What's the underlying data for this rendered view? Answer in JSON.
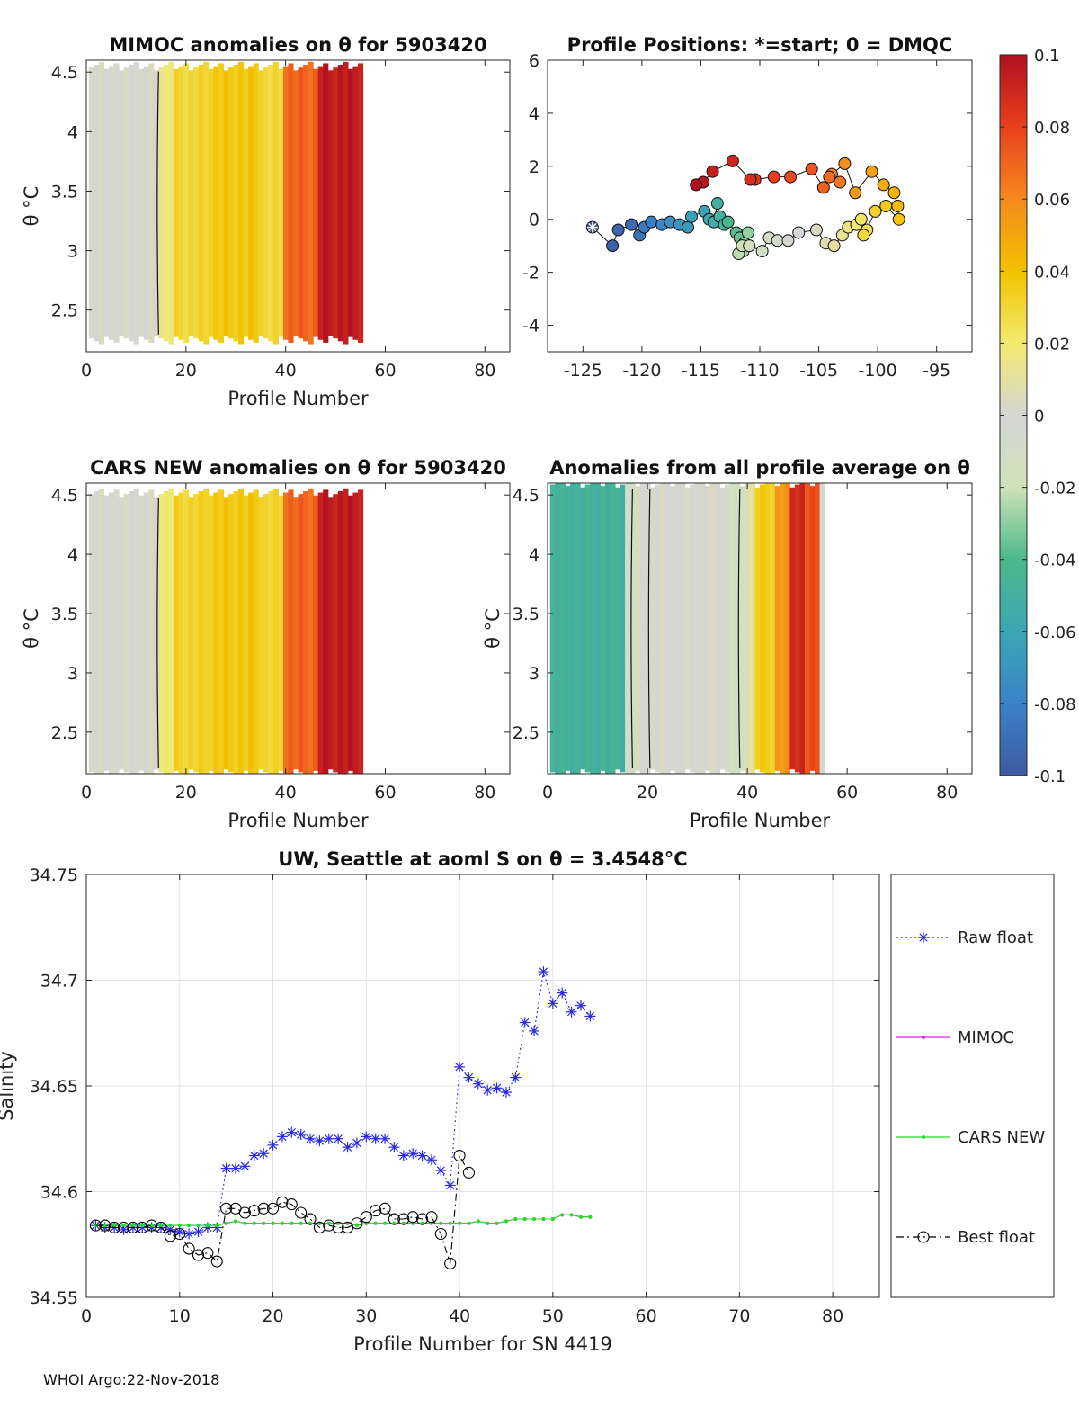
{
  "chart_data": [
    {
      "id": "mimoc",
      "type": "heatmap",
      "title": "MIMOC anomalies on θ  for 5903420",
      "xlabel": "Profile Number",
      "ylabel": "θ °C",
      "xlim": [
        0,
        85
      ],
      "ylim": [
        2.15,
        4.6
      ],
      "xticks": [
        "0",
        "20",
        "40",
        "60",
        "80"
      ],
      "yticks": [
        "2.5",
        "3",
        "3.5",
        "4",
        "4.5"
      ],
      "profiles": 55,
      "theta_range": [
        2.25,
        4.55
      ],
      "anomaly_bands": [
        {
          "from": 1,
          "to": 14,
          "value": 0.0
        },
        {
          "from": 15,
          "to": 17,
          "value": 0.018
        },
        {
          "from": 18,
          "to": 24,
          "value": 0.03
        },
        {
          "from": 25,
          "to": 35,
          "value": 0.037
        },
        {
          "from": 36,
          "to": 39,
          "value": 0.028
        },
        {
          "from": 40,
          "to": 46,
          "value": 0.07
        },
        {
          "from": 47,
          "to": 55,
          "value": 0.095
        }
      ]
    },
    {
      "id": "positions",
      "type": "scatter",
      "title": "Profile Positions: *=start; 0 = DMQC",
      "xlim": [
        -128,
        -92
      ],
      "ylim": [
        -5,
        6
      ],
      "xticks": [
        "-125",
        "-120",
        "-115",
        "-110",
        "-105",
        "-100",
        "-95"
      ],
      "yticks": [
        "-4",
        "-2",
        "0",
        "2",
        "4",
        "6"
      ],
      "start": [
        -124.2,
        -0.3
      ],
      "points": [
        [
          -124.2,
          -0.3
        ],
        [
          -122.5,
          -1.0
        ],
        [
          -122.0,
          -0.4
        ],
        [
          -120.9,
          -0.2
        ],
        [
          -120.2,
          -0.6
        ],
        [
          -119.8,
          -0.3
        ],
        [
          -119.2,
          -0.1
        ],
        [
          -118.3,
          -0.2
        ],
        [
          -117.6,
          -0.1
        ],
        [
          -116.8,
          -0.2
        ],
        [
          -116.1,
          -0.3
        ],
        [
          -115.8,
          0.1
        ],
        [
          -114.7,
          0.3
        ],
        [
          -114.3,
          0.0
        ],
        [
          -113.9,
          -0.1
        ],
        [
          -113.6,
          0.6
        ],
        [
          -113.4,
          0.1
        ],
        [
          -113.0,
          -0.2
        ],
        [
          -112.7,
          -0.1
        ],
        [
          -112.0,
          -0.5
        ],
        [
          -111.7,
          -0.7
        ],
        [
          -111.3,
          -0.9
        ],
        [
          -111.0,
          -0.5
        ],
        [
          -111.4,
          -1.2
        ],
        [
          -111.8,
          -1.3
        ],
        [
          -111.5,
          -1.0
        ],
        [
          -110.9,
          -1.0
        ],
        [
          -109.8,
          -1.2
        ],
        [
          -109.2,
          -0.7
        ],
        [
          -108.5,
          -0.8
        ],
        [
          -107.6,
          -0.8
        ],
        [
          -106.7,
          -0.5
        ],
        [
          -105.2,
          -0.4
        ],
        [
          -104.4,
          -0.9
        ],
        [
          -103.7,
          -1.0
        ],
        [
          -103.0,
          -0.6
        ],
        [
          -102.5,
          -0.3
        ],
        [
          -101.8,
          -0.2
        ],
        [
          -101.4,
          0.0
        ],
        [
          -100.9,
          -0.4
        ],
        [
          -101.2,
          -0.6
        ],
        [
          -100.2,
          0.3
        ],
        [
          -99.3,
          0.5
        ],
        [
          -98.2,
          0.0
        ],
        [
          -98.3,
          0.5
        ],
        [
          -98.6,
          1.0
        ],
        [
          -99.5,
          1.3
        ],
        [
          -100.5,
          1.8
        ],
        [
          -101.9,
          1.0
        ],
        [
          -102.8,
          2.1
        ],
        [
          -103.9,
          1.7
        ],
        [
          -103.2,
          1.4
        ],
        [
          -104.1,
          1.6
        ],
        [
          -104.6,
          1.2
        ],
        [
          -105.6,
          1.9
        ],
        [
          -107.4,
          1.6
        ],
        [
          -108.8,
          1.6
        ],
        [
          -110.4,
          1.5
        ],
        [
          -110.8,
          1.5
        ],
        [
          -112.3,
          2.2
        ],
        [
          -114.0,
          1.8
        ],
        [
          -114.8,
          1.4
        ],
        [
          -115.4,
          1.3
        ]
      ]
    },
    {
      "id": "colorbar",
      "type": "colorbar",
      "range": [
        -0.1,
        0.1
      ],
      "ticks": [
        "0.1",
        "0.08",
        "0.06",
        "0.04",
        "0.02",
        "0",
        "-0.02",
        "-0.04",
        "-0.06",
        "-0.08",
        "-0.1"
      ],
      "stops": [
        {
          "v": -0.1,
          "c": "#3d5aa0"
        },
        {
          "v": -0.08,
          "c": "#3b82c8"
        },
        {
          "v": -0.06,
          "c": "#3aa7b3"
        },
        {
          "v": -0.04,
          "c": "#4bb98a"
        },
        {
          "v": -0.02,
          "c": "#cfe3b8"
        },
        {
          "v": 0.0,
          "c": "#d5d5d5"
        },
        {
          "v": 0.02,
          "c": "#f2ea6e"
        },
        {
          "v": 0.04,
          "c": "#f2c200"
        },
        {
          "v": 0.06,
          "c": "#f58a1f"
        },
        {
          "v": 0.08,
          "c": "#e8401c"
        },
        {
          "v": 0.1,
          "c": "#b01020"
        }
      ]
    },
    {
      "id": "cars",
      "type": "heatmap",
      "title": "CARS NEW anomalies on θ for 5903420",
      "xlabel": "Profile Number",
      "ylabel": "θ °C",
      "xlim": [
        0,
        85
      ],
      "ylim": [
        2.15,
        4.6
      ],
      "xticks": [
        "0",
        "20",
        "40",
        "60",
        "80"
      ],
      "yticks": [
        "2.5",
        "3",
        "3.5",
        "4",
        "4.5"
      ],
      "profiles": 55,
      "theta_range": [
        2.15,
        4.52
      ],
      "anomaly_bands": [
        {
          "from": 1,
          "to": 14,
          "value": 0.0
        },
        {
          "from": 15,
          "to": 17,
          "value": 0.02
        },
        {
          "from": 18,
          "to": 24,
          "value": 0.032
        },
        {
          "from": 25,
          "to": 35,
          "value": 0.037
        },
        {
          "from": 36,
          "to": 39,
          "value": 0.03
        },
        {
          "from": 40,
          "to": 46,
          "value": 0.07
        },
        {
          "from": 47,
          "to": 55,
          "value": 0.095
        }
      ]
    },
    {
      "id": "anomaly_avg",
      "type": "heatmap",
      "title": "Anomalies from all profile average on θ",
      "xlabel": "Profile Number",
      "ylabel": "θ °C",
      "xlim": [
        0,
        85
      ],
      "ylim": [
        2.15,
        4.6
      ],
      "xticks": [
        "0",
        "20",
        "40",
        "60",
        "80"
      ],
      "yticks": [
        "2.5",
        "3",
        "3.5",
        "4",
        "4.5"
      ],
      "profiles": 55,
      "theta_range": [
        2.15,
        4.6
      ],
      "anomaly_bands": [
        {
          "from": 1,
          "to": 15,
          "value": -0.048
        },
        {
          "from": 16,
          "to": 17,
          "value": -0.01
        },
        {
          "from": 18,
          "to": 36,
          "value": 0.0
        },
        {
          "from": 37,
          "to": 39,
          "value": -0.015
        },
        {
          "from": 40,
          "to": 41,
          "value": 0.01
        },
        {
          "from": 42,
          "to": 45,
          "value": 0.035
        },
        {
          "from": 46,
          "to": 48,
          "value": 0.055
        },
        {
          "from": 49,
          "to": 51,
          "value": 0.09
        },
        {
          "from": 52,
          "to": 54,
          "value": 0.075
        }
      ]
    },
    {
      "id": "salinity",
      "type": "line",
      "title": "UW, Seattle at aoml S on θ = 3.4548°C",
      "xlabel": "Profile Number for SN 4419",
      "ylabel": "Salinity",
      "xlim": [
        0,
        85
      ],
      "ylim": [
        34.55,
        34.75
      ],
      "xticks": [
        "0",
        "10",
        "20",
        "30",
        "40",
        "50",
        "60",
        "70",
        "80"
      ],
      "yticks": [
        "34.55",
        "34.6",
        "34.65",
        "34.7",
        "34.75"
      ],
      "grid": true,
      "series": [
        {
          "name": "Raw float",
          "color": "#2a2ae8",
          "marker": "star",
          "line": "dotted",
          "x": [
            1,
            2,
            3,
            4,
            5,
            6,
            7,
            8,
            9,
            10,
            11,
            12,
            13,
            14,
            15,
            16,
            17,
            18,
            19,
            20,
            21,
            22,
            23,
            24,
            25,
            26,
            27,
            28,
            29,
            30,
            31,
            32,
            33,
            34,
            35,
            36,
            37,
            38,
            39,
            40,
            41,
            42,
            43,
            44,
            45,
            46,
            47,
            48,
            49,
            50,
            51,
            52,
            53,
            54
          ],
          "y": [
            34.584,
            34.583,
            34.583,
            34.582,
            34.583,
            34.583,
            34.583,
            34.583,
            34.582,
            34.581,
            34.58,
            34.581,
            34.583,
            34.583,
            34.611,
            34.611,
            34.612,
            34.617,
            34.618,
            34.622,
            34.626,
            34.628,
            34.627,
            34.625,
            34.624,
            34.625,
            34.625,
            34.621,
            34.623,
            34.626,
            34.625,
            34.625,
            34.621,
            34.617,
            34.618,
            34.617,
            34.615,
            34.61,
            34.603,
            34.659,
            34.654,
            34.651,
            34.648,
            34.649,
            34.647,
            34.654,
            34.68,
            34.676,
            34.704,
            34.689,
            34.694,
            34.685,
            34.688,
            34.683
          ]
        },
        {
          "name": "MIMOC",
          "color": "#e020e0",
          "marker": "dot",
          "line": "solid",
          "x": [
            1,
            2,
            3,
            4,
            5,
            6,
            7,
            8,
            9,
            10,
            11,
            12,
            13,
            14,
            15,
            16,
            17,
            18,
            19,
            20,
            21,
            22,
            23,
            24,
            25,
            26,
            27,
            28,
            29,
            30,
            31,
            32,
            33,
            34,
            35,
            36,
            37,
            38,
            39,
            40,
            41,
            42,
            43,
            44,
            45,
            46,
            47,
            48,
            49,
            50,
            51,
            52,
            53,
            54
          ],
          "y": [
            34.584,
            34.584,
            34.584,
            34.584,
            34.584,
            34.584,
            34.584,
            34.584,
            34.584,
            34.584,
            34.584,
            34.584,
            34.584,
            34.584,
            34.585,
            34.586,
            34.585,
            34.585,
            34.585,
            34.585,
            34.585,
            34.585,
            34.585,
            34.585,
            34.585,
            34.585,
            34.585,
            34.585,
            34.584,
            34.585,
            34.585,
            34.585,
            34.585,
            34.585,
            34.585,
            34.585,
            34.585,
            34.585,
            34.585,
            34.585,
            34.585,
            34.586,
            34.585,
            34.585,
            34.586,
            34.587,
            34.587,
            34.587,
            34.587,
            34.587,
            34.589,
            34.589,
            34.588,
            34.588
          ]
        },
        {
          "name": "CARS NEW",
          "color": "#22dd22",
          "marker": "dot",
          "line": "solid",
          "x": [
            1,
            2,
            3,
            4,
            5,
            6,
            7,
            8,
            9,
            10,
            11,
            12,
            13,
            14,
            15,
            16,
            17,
            18,
            19,
            20,
            21,
            22,
            23,
            24,
            25,
            26,
            27,
            28,
            29,
            30,
            31,
            32,
            33,
            34,
            35,
            36,
            37,
            38,
            39,
            40,
            41,
            42,
            43,
            44,
            45,
            46,
            47,
            48,
            49,
            50,
            51,
            52,
            53,
            54
          ],
          "y": [
            34.584,
            34.584,
            34.584,
            34.584,
            34.584,
            34.584,
            34.584,
            34.584,
            34.584,
            34.584,
            34.584,
            34.584,
            34.584,
            34.584,
            34.585,
            34.586,
            34.585,
            34.585,
            34.585,
            34.585,
            34.585,
            34.585,
            34.585,
            34.585,
            34.585,
            34.585,
            34.585,
            34.585,
            34.584,
            34.585,
            34.585,
            34.585,
            34.585,
            34.585,
            34.585,
            34.585,
            34.585,
            34.585,
            34.585,
            34.585,
            34.585,
            34.586,
            34.585,
            34.585,
            34.586,
            34.587,
            34.587,
            34.587,
            34.587,
            34.587,
            34.589,
            34.589,
            34.588,
            34.588
          ]
        },
        {
          "name": "Best float",
          "color": "#000000",
          "marker": "circle",
          "line": "dashdot",
          "x": [
            1,
            2,
            3,
            4,
            5,
            6,
            7,
            8,
            9,
            10,
            11,
            12,
            13,
            14,
            15,
            16,
            17,
            18,
            19,
            20,
            21,
            22,
            23,
            24,
            25,
            26,
            27,
            28,
            29,
            30,
            31,
            32,
            33,
            34,
            35,
            36,
            37,
            38,
            39,
            40,
            41
          ],
          "y": [
            34.584,
            34.584,
            34.583,
            34.583,
            34.583,
            34.583,
            34.584,
            34.583,
            34.579,
            34.58,
            34.573,
            34.57,
            34.571,
            34.567,
            34.592,
            34.592,
            34.59,
            34.591,
            34.592,
            34.592,
            34.595,
            34.594,
            34.59,
            34.587,
            34.583,
            34.584,
            34.583,
            34.583,
            34.585,
            34.588,
            34.591,
            34.592,
            34.587,
            34.587,
            34.588,
            34.587,
            34.588,
            34.58,
            34.566,
            34.617,
            34.609
          ]
        }
      ]
    }
  ],
  "footer": "WHOI Argo:22-Nov-2018"
}
